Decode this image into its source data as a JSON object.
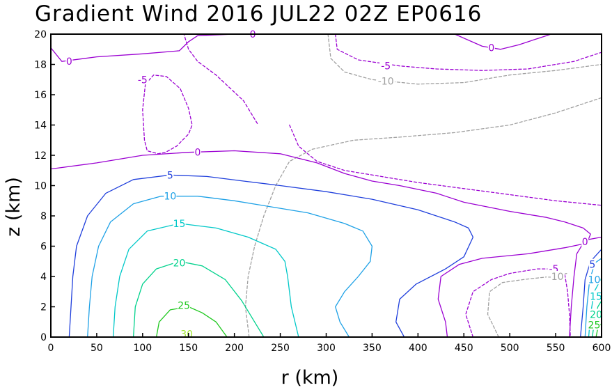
{
  "chart_data": {
    "type": "contour",
    "title": "Gradient Wind 2016 JUL22 02Z   EP0616",
    "xlabel": "r (km)",
    "ylabel": "z (km)",
    "xlim": [
      0,
      600
    ],
    "ylim": [
      0,
      20
    ],
    "x_ticks": [
      0,
      50,
      100,
      150,
      200,
      250,
      300,
      350,
      400,
      450,
      500,
      550,
      600
    ],
    "y_ticks": [
      0,
      2,
      4,
      6,
      8,
      10,
      12,
      14,
      16,
      18,
      20
    ],
    "grid": false,
    "levels": [
      {
        "value": -10,
        "label": "-10",
        "color": "#a0a0a0",
        "dashed": true,
        "lines": [
          [
            [
              216,
              0.0
            ],
            [
              212,
              2.0
            ],
            [
              215,
              4.0
            ],
            [
              222,
              6.0
            ],
            [
              232,
              8.0
            ],
            [
              245,
              10.0
            ],
            [
              260,
              11.6
            ],
            [
              285,
              12.4
            ],
            [
              330,
              13.0
            ],
            [
              380,
              13.2
            ],
            [
              440,
              13.5
            ],
            [
              500,
              14.0
            ],
            [
              550,
              14.8
            ],
            [
              600,
              15.8
            ]
          ],
          [
            [
              488,
              0.0
            ],
            [
              476,
              1.5
            ],
            [
              478,
              3.0
            ],
            [
              492,
              3.6
            ],
            [
              515,
              3.8
            ],
            [
              545,
              4.0
            ],
            [
              562,
              4.2
            ]
          ],
          [
            [
              302,
              20.0
            ],
            [
              305,
              18.4
            ],
            [
              320,
              17.5
            ],
            [
              350,
              17.0
            ],
            [
              400,
              16.7
            ],
            [
              450,
              16.8
            ],
            [
              500,
              17.3
            ],
            [
              550,
              17.6
            ],
            [
              600,
              18.0
            ]
          ]
        ]
      },
      {
        "value": -5,
        "label": "-5",
        "color": "#9b00d2",
        "dashed": true,
        "lines": [
          [
            [
              260,
              14.0
            ],
            [
              270,
              12.6
            ],
            [
              290,
              11.6
            ],
            [
              320,
              11.0
            ],
            [
              360,
              10.6
            ],
            [
              400,
              10.2
            ],
            [
              450,
              9.8
            ],
            [
              500,
              9.4
            ],
            [
              550,
              9.0
            ],
            [
              600,
              8.7
            ]
          ],
          [
            [
              225,
              14.1
            ],
            [
              210,
              15.6
            ],
            [
              180,
              17.3
            ],
            [
              160,
              18.2
            ],
            [
              150,
              19.0
            ],
            [
              145,
              20.0
            ]
          ],
          [
            [
              103,
              16.7
            ],
            [
              100,
              15.0
            ],
            [
              102,
              13.0
            ],
            [
              105,
              12.3
            ],
            [
              117,
              12.1
            ],
            [
              125,
              12.2
            ],
            [
              137,
              12.6
            ],
            [
              150,
              13.4
            ],
            [
              154,
              14.0
            ],
            [
              150,
              15.1
            ],
            [
              141,
              16.4
            ],
            [
              126,
              17.2
            ],
            [
              112,
              17.3
            ],
            [
              103,
              16.7
            ]
          ],
          [
            [
              460,
              0.0
            ],
            [
              452,
              1.5
            ],
            [
              460,
              3.0
            ],
            [
              480,
              3.8
            ],
            [
              500,
              4.2
            ],
            [
              530,
              4.5
            ],
            [
              552,
              4.5
            ],
            [
              560,
              4.1
            ],
            [
              563,
              3.0
            ],
            [
              565,
              1.5
            ],
            [
              566,
              0.0
            ]
          ],
          [
            [
              310,
              20.0
            ],
            [
              312,
              19.0
            ],
            [
              335,
              18.3
            ],
            [
              380,
              17.9
            ],
            [
              420,
              17.7
            ],
            [
              470,
              17.6
            ],
            [
              520,
              17.7
            ],
            [
              570,
              18.2
            ],
            [
              600,
              18.8
            ]
          ]
        ]
      },
      {
        "value": 0,
        "label": "0",
        "color": "#9b00d2",
        "dashed": false,
        "lines": [
          [
            [
              0,
              11.1
            ],
            [
              50,
              11.5
            ],
            [
              100,
              12.0
            ],
            [
              150,
              12.2
            ],
            [
              200,
              12.3
            ],
            [
              250,
              12.1
            ],
            [
              290,
              11.5
            ],
            [
              320,
              10.8
            ],
            [
              350,
              10.3
            ],
            [
              380,
              10.0
            ],
            [
              420,
              9.5
            ],
            [
              450,
              8.9
            ],
            [
              500,
              8.3
            ],
            [
              540,
              7.9
            ],
            [
              560,
              7.6
            ],
            [
              580,
              7.2
            ],
            [
              588,
              6.8
            ],
            [
              584,
              6.2
            ],
            [
              560,
              5.9
            ],
            [
              520,
              5.5
            ],
            [
              470,
              5.2
            ],
            [
              445,
              4.8
            ],
            [
              425,
              4.0
            ],
            [
              422,
              2.5
            ],
            [
              430,
              1.0
            ],
            [
              432,
              0.0
            ]
          ],
          [
            [
              0,
              19.1
            ],
            [
              12,
              18.2
            ],
            [
              50,
              18.5
            ],
            [
              100,
              18.7
            ],
            [
              140,
              18.9
            ],
            [
              150,
              19.5
            ],
            [
              160,
              19.9
            ],
            [
              200,
              20.0
            ]
          ],
          [
            [
              565,
              0.0
            ],
            [
              567,
              2.0
            ],
            [
              570,
              4.0
            ],
            [
              573,
              5.5
            ],
            [
              582,
              6.4
            ],
            [
              600,
              6.6
            ]
          ],
          [
            [
              440,
              20.0
            ],
            [
              470,
              19.2
            ],
            [
              490,
              19.0
            ],
            [
              510,
              19.3
            ],
            [
              540,
              19.9
            ],
            [
              545,
              20.0
            ]
          ]
        ]
      },
      {
        "value": 5,
        "label": "5",
        "color": "#1f3fdc",
        "dashed": false,
        "lines": [
          [
            [
              20,
              0.0
            ],
            [
              22,
              2.0
            ],
            [
              24,
              4.0
            ],
            [
              28,
              6.0
            ],
            [
              40,
              8.0
            ],
            [
              60,
              9.5
            ],
            [
              90,
              10.4
            ],
            [
              130,
              10.7
            ],
            [
              170,
              10.6
            ],
            [
              210,
              10.3
            ],
            [
              250,
              10.0
            ],
            [
              300,
              9.6
            ],
            [
              350,
              9.1
            ],
            [
              400,
              8.4
            ],
            [
              440,
              7.6
            ],
            [
              455,
              7.2
            ],
            [
              460,
              6.6
            ],
            [
              450,
              5.3
            ],
            [
              430,
              4.5
            ],
            [
              398,
              3.5
            ],
            [
              380,
              2.5
            ],
            [
              376,
              1.0
            ],
            [
              385,
              0.0
            ]
          ],
          [
            [
              577,
              0.0
            ],
            [
              580,
              2.0
            ],
            [
              582,
              3.8
            ],
            [
              588,
              5.0
            ],
            [
              600,
              5.8
            ]
          ]
        ]
      },
      {
        "value": 10,
        "label": "10",
        "color": "#1ea1e6",
        "dashed": false,
        "lines": [
          [
            [
              40,
              0.0
            ],
            [
              42,
              2.0
            ],
            [
              45,
              4.0
            ],
            [
              52,
              6.0
            ],
            [
              65,
              7.6
            ],
            [
              90,
              8.8
            ],
            [
              120,
              9.3
            ],
            [
              160,
              9.3
            ],
            [
              200,
              9.0
            ],
            [
              240,
              8.6
            ],
            [
              280,
              8.2
            ],
            [
              320,
              7.5
            ],
            [
              340,
              7.0
            ],
            [
              350,
              6.0
            ],
            [
              348,
              5.0
            ],
            [
              335,
              4.0
            ],
            [
              320,
              3.0
            ],
            [
              310,
              2.0
            ],
            [
              315,
              1.0
            ],
            [
              325,
              0.0
            ]
          ],
          [
            [
              582,
              0.0
            ],
            [
              584,
              2.0
            ],
            [
              587,
              3.8
            ],
            [
              593,
              4.9
            ],
            [
              600,
              5.2
            ]
          ]
        ]
      },
      {
        "value": 15,
        "label": "15",
        "color": "#00c8c8",
        "dashed": false,
        "lines": [
          [
            [
              68,
              0.0
            ],
            [
              70,
              2.0
            ],
            [
              75,
              4.0
            ],
            [
              85,
              5.8
            ],
            [
              105,
              7.0
            ],
            [
              140,
              7.5
            ],
            [
              180,
              7.2
            ],
            [
              215,
              6.6
            ],
            [
              245,
              5.8
            ],
            [
              255,
              5.0
            ],
            [
              258,
              4.0
            ],
            [
              262,
              2.0
            ],
            [
              270,
              0.0
            ]
          ],
          [
            [
              586,
              0.0
            ],
            [
              588,
              1.5
            ],
            [
              592,
              3.0
            ],
            [
              600,
              3.9
            ]
          ]
        ]
      },
      {
        "value": 20,
        "label": "20",
        "color": "#00d28c",
        "dashed": false,
        "lines": [
          [
            [
              90,
              0.0
            ],
            [
              92,
              2.0
            ],
            [
              100,
              3.5
            ],
            [
              115,
              4.5
            ],
            [
              140,
              5.0
            ],
            [
              165,
              4.7
            ],
            [
              190,
              3.8
            ],
            [
              208,
              2.4
            ],
            [
              222,
              1.0
            ],
            [
              232,
              0.0
            ]
          ],
          [
            [
              590,
              0.0
            ],
            [
              592,
              1.0
            ],
            [
              596,
              2.0
            ],
            [
              600,
              2.4
            ]
          ]
        ]
      },
      {
        "value": 25,
        "label": "25",
        "color": "#1ec81e",
        "dashed": false,
        "lines": [
          [
            [
              115,
              0.0
            ],
            [
              118,
              1.0
            ],
            [
              130,
              1.8
            ],
            [
              150,
              2.0
            ],
            [
              165,
              1.6
            ],
            [
              180,
              1.0
            ],
            [
              192,
              0.0
            ]
          ],
          [
            [
              594,
              0.0
            ],
            [
              596,
              0.6
            ],
            [
              600,
              0.9
            ]
          ]
        ]
      },
      {
        "value": 30,
        "label": "30",
        "color": "#a0e632",
        "dashed": false,
        "lines": []
      }
    ],
    "contour_labels": [
      {
        "text": "0",
        "x": 20,
        "y": 18.2,
        "level": 0
      },
      {
        "text": "0",
        "x": 220,
        "y": 20.0,
        "level": 0
      },
      {
        "text": "0",
        "x": 480,
        "y": 19.1,
        "level": 0
      },
      {
        "text": "0",
        "x": 160,
        "y": 12.2,
        "level": 0
      },
      {
        "text": "0",
        "x": 582,
        "y": 6.3,
        "level": 0
      },
      {
        "text": "-5",
        "x": 100,
        "y": 17.0,
        "level": -5
      },
      {
        "text": "-5",
        "x": 365,
        "y": 17.9,
        "level": -5
      },
      {
        "text": "-5",
        "x": 548,
        "y": 4.5,
        "level": -5
      },
      {
        "text": "-10",
        "x": 365,
        "y": 16.9,
        "level": -10
      },
      {
        "text": "-10",
        "x": 550,
        "y": 4.0,
        "level": -10
      },
      {
        "text": "5",
        "x": 130,
        "y": 10.7,
        "level": 5
      },
      {
        "text": "5",
        "x": 590,
        "y": 4.8,
        "level": 5
      },
      {
        "text": "10",
        "x": 130,
        "y": 9.3,
        "level": 10
      },
      {
        "text": "10",
        "x": 592,
        "y": 3.8,
        "level": 10
      },
      {
        "text": "15",
        "x": 140,
        "y": 7.5,
        "level": 15
      },
      {
        "text": "15",
        "x": 594,
        "y": 2.7,
        "level": 15
      },
      {
        "text": "20",
        "x": 140,
        "y": 4.9,
        "level": 20
      },
      {
        "text": "20",
        "x": 594,
        "y": 1.5,
        "level": 20
      },
      {
        "text": "25",
        "x": 145,
        "y": 2.1,
        "level": 25
      },
      {
        "text": "25",
        "x": 592,
        "y": 0.8,
        "level": 25
      },
      {
        "text": "30",
        "x": 148,
        "y": 0.2,
        "level": 30
      }
    ]
  }
}
